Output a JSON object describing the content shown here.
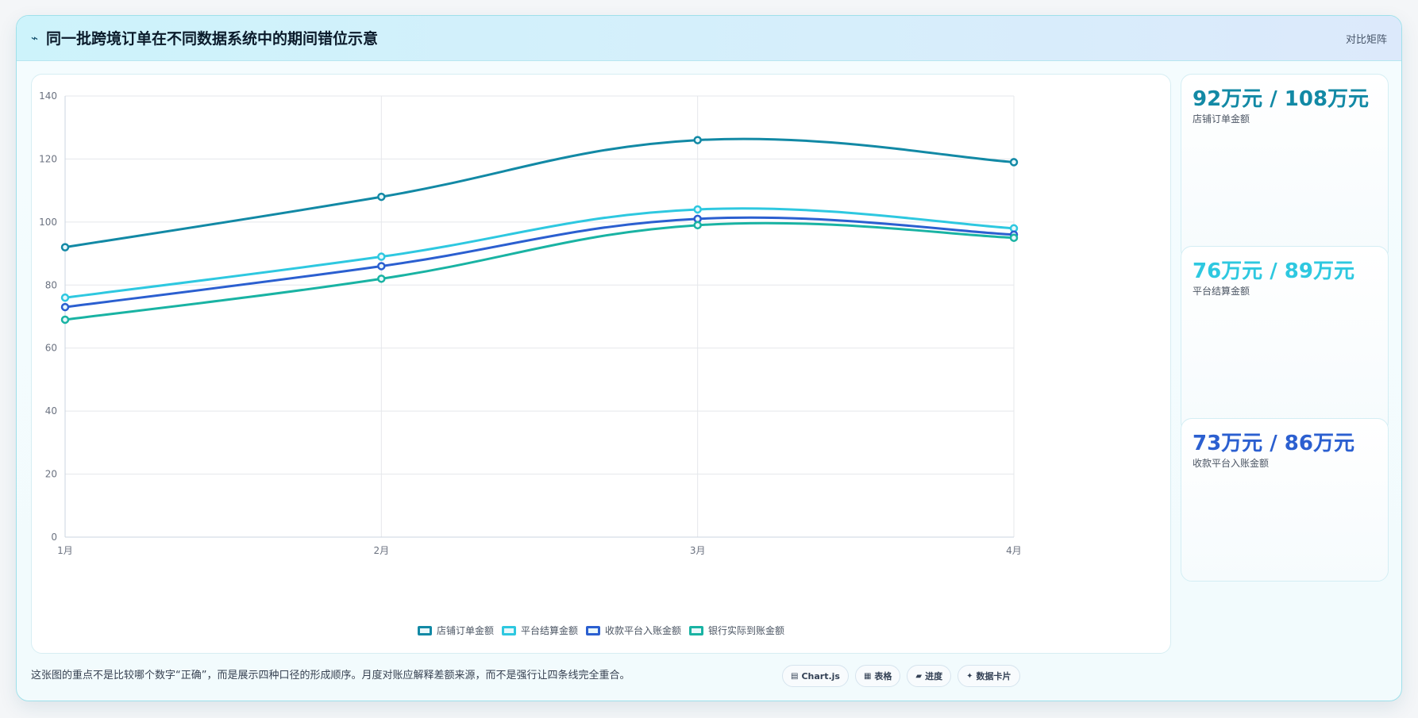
{
  "header": {
    "icon": "trend-icon",
    "title": "同一批跨境订单在不同数据系统中的期间错位示意",
    "tag": "对比矩阵"
  },
  "chart_data": {
    "type": "line",
    "categories": [
      "1月",
      "2月",
      "3月",
      "4月"
    ],
    "ylim": [
      0,
      140
    ],
    "yticks": [
      0,
      20,
      40,
      60,
      80,
      100,
      120,
      140
    ],
    "grid": true,
    "legend_position": "bottom",
    "series": [
      {
        "name": "店铺订单金额",
        "color": "#1289a5",
        "values": [
          92,
          108,
          126,
          119
        ]
      },
      {
        "name": "平台结算金额",
        "color": "#2ec8e0",
        "values": [
          76,
          89,
          104,
          98
        ]
      },
      {
        "name": "收款平台入账金额",
        "color": "#2b5fd0",
        "values": [
          73,
          86,
          101,
          96
        ]
      },
      {
        "name": "银行实际到账金额",
        "color": "#19b3a3",
        "values": [
          69,
          82,
          99,
          95
        ]
      }
    ]
  },
  "kpis": [
    {
      "value": "92万元 / 108万元",
      "label": "店铺订单金额",
      "color": "#1289a5"
    },
    {
      "value": "76万元 / 89万元",
      "label": "平台结算金额",
      "color": "#2ec8e0"
    },
    {
      "value": "73万元 / 86万元",
      "label": "收款平台入账金额",
      "color": "#2b5fd0"
    }
  ],
  "footer": {
    "note": "这张图的重点不是比较哪个数字“正确”，而是展示四种口径的形成顺序。月度对账应解释差额来源，而不是强行让四条线完全重合。",
    "chips": [
      {
        "icon": "▤",
        "label": "Chart.js"
      },
      {
        "icon": "▦",
        "label": "表格"
      },
      {
        "icon": "▰",
        "label": "进度"
      },
      {
        "icon": "✦",
        "label": "数据卡片"
      }
    ]
  }
}
